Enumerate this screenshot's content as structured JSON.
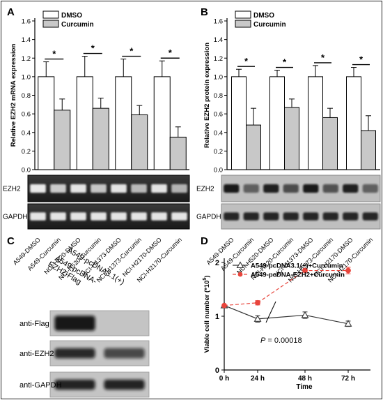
{
  "chart_data": [
    {
      "panel": "A",
      "type": "bar",
      "ylabel": "Relative EZH2 mRNA expression",
      "ylim": [
        0,
        1.6
      ],
      "yticks": [
        "0.0",
        "0.2",
        "0.4",
        "0.6",
        "0.8",
        "1.0",
        "1.2",
        "1.4",
        "1.6"
      ],
      "legend": [
        "DMSO",
        "Curcumin"
      ],
      "series": [
        {
          "name": "DMSO",
          "color": "#ffffff",
          "values": [
            1.0,
            1.0,
            1.0,
            1.0
          ],
          "errors": [
            0.16,
            0.22,
            0.19,
            0.17
          ]
        },
        {
          "name": "Curcumin",
          "color": "#c8c8c8",
          "values": [
            0.64,
            0.66,
            0.59,
            0.35
          ],
          "errors": [
            0.12,
            0.11,
            0.1,
            0.11
          ]
        }
      ],
      "significance": "*",
      "blot_labels": [
        "EZH2",
        "GAPDH"
      ],
      "lane_labels": [
        "A549-DMSO",
        "A549-Curcumin",
        "NCI-H520-DMSO",
        "NCI-H520-Curcumin",
        "NCI-H1373-DMSO",
        "NCI-H1373-Curcumin",
        "NCI-H2170-DMSO",
        "NCI-H2170-Curcumin"
      ]
    },
    {
      "panel": "B",
      "type": "bar",
      "ylabel": "Relative EZH2 protein expression",
      "ylim": [
        0,
        1.6
      ],
      "yticks": [
        "0.0",
        "0.2",
        "0.4",
        "0.6",
        "0.8",
        "1.0",
        "1.2",
        "1.4",
        "1.6"
      ],
      "legend": [
        "DMSO",
        "Curcumin"
      ],
      "series": [
        {
          "name": "DMSO",
          "color": "#ffffff",
          "values": [
            1.0,
            1.0,
            1.0,
            1.0
          ],
          "errors": [
            0.08,
            0.07,
            0.12,
            0.1
          ]
        },
        {
          "name": "Curcumin",
          "color": "#c8c8c8",
          "values": [
            0.48,
            0.67,
            0.56,
            0.42
          ],
          "errors": [
            0.18,
            0.09,
            0.1,
            0.16
          ]
        }
      ],
      "significance": "*",
      "blot_labels": [
        "EZH2",
        "GAPDH"
      ],
      "lane_labels": [
        "A549-DMSO",
        "A549-Curcumin",
        "NCI-H520-DMSO",
        "NCI-H520-Curcumin",
        "NCI-H1373-DMSO",
        "NCI-H1373-Curcumin",
        "NCI-H2170-DMSO",
        "NCI-H2170-Curcumin"
      ]
    },
    {
      "panel": "C",
      "type": "western-blot",
      "lane_labels": [
        "A549-pcDNA-EZH2-Flag",
        "A549-pcDNA3.1(+)"
      ],
      "blot_labels": [
        "anti-Flag",
        "anti-EZH2",
        "anti-GAPDH"
      ]
    },
    {
      "panel": "D",
      "type": "line",
      "xlabel": "Time",
      "ylabel": "Viable cell number (*10",
      "ylabel_sup": "5",
      "ylabel_close": ")",
      "x": [
        "0 h",
        "24 h",
        "48 h",
        "72 h"
      ],
      "ylim": [
        0,
        2
      ],
      "yticks": [
        "0",
        "1",
        "2"
      ],
      "series": [
        {
          "name": "A549-pcDNA3.1(+)+Curcumin",
          "color": "#333333",
          "marker": "triangle-open",
          "dash": "solid",
          "values": [
            1.2,
            0.95,
            1.02,
            0.86
          ],
          "errors": [
            0.0,
            0.06,
            0.06,
            0.05
          ]
        },
        {
          "name": "A549-pcDNA-EZH2+Curcumin",
          "color": "#e8453c",
          "marker": "circle-filled",
          "dash": "dashed",
          "values": [
            1.2,
            1.25,
            1.85,
            1.85
          ],
          "errors": [
            0.0,
            0.04,
            0.03,
            0.06
          ]
        }
      ],
      "annotation": {
        "italic": "P",
        "text": " = 0.00018"
      }
    }
  ],
  "panels": {
    "A": "A",
    "B": "B",
    "C": "C",
    "D": "D"
  }
}
